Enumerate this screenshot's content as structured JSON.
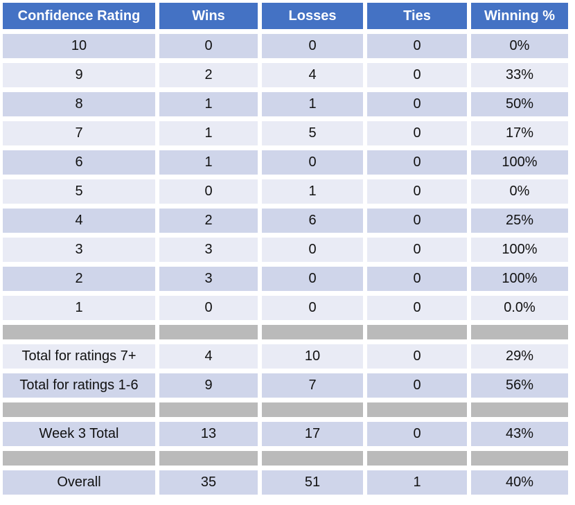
{
  "colors": {
    "header_bg": "#4472C4",
    "header_text": "#FFFFFF",
    "band_dark": "#CFD5EA",
    "band_light": "#E9EBF5",
    "separator_gray": "#BABABA",
    "body_text": "#111111",
    "page_bg": "#FFFFFF"
  },
  "chart_data": {
    "type": "table",
    "columns": [
      "Confidence Rating",
      "Wins",
      "Losses",
      "Ties",
      "Winning %"
    ],
    "rows": [
      {
        "type": "data",
        "shade": "dark",
        "cells": [
          "10",
          "0",
          "0",
          "0",
          "0%"
        ]
      },
      {
        "type": "data",
        "shade": "light",
        "cells": [
          "9",
          "2",
          "4",
          "0",
          "33%"
        ]
      },
      {
        "type": "data",
        "shade": "dark",
        "cells": [
          "8",
          "1",
          "1",
          "0",
          "50%"
        ]
      },
      {
        "type": "data",
        "shade": "light",
        "cells": [
          "7",
          "1",
          "5",
          "0",
          "17%"
        ]
      },
      {
        "type": "data",
        "shade": "dark",
        "cells": [
          "6",
          "1",
          "0",
          "0",
          "100%"
        ]
      },
      {
        "type": "data",
        "shade": "light",
        "cells": [
          "5",
          "0",
          "1",
          "0",
          "0%"
        ]
      },
      {
        "type": "data",
        "shade": "dark",
        "cells": [
          "4",
          "2",
          "6",
          "0",
          "25%"
        ]
      },
      {
        "type": "data",
        "shade": "light",
        "cells": [
          "3",
          "3",
          "0",
          "0",
          "100%"
        ]
      },
      {
        "type": "data",
        "shade": "dark",
        "cells": [
          "2",
          "3",
          "0",
          "0",
          "100%"
        ]
      },
      {
        "type": "data",
        "shade": "light",
        "cells": [
          "1",
          "0",
          "0",
          "0",
          "0.0%"
        ]
      },
      {
        "type": "separator"
      },
      {
        "type": "data",
        "shade": "light",
        "cells": [
          "Total for ratings 7+",
          "4",
          "10",
          "0",
          "29%"
        ]
      },
      {
        "type": "data",
        "shade": "dark",
        "cells": [
          "Total for ratings 1-6",
          "9",
          "7",
          "0",
          "56%"
        ]
      },
      {
        "type": "separator"
      },
      {
        "type": "data",
        "shade": "dark",
        "cells": [
          "Week 3 Total",
          "13",
          "17",
          "0",
          "43%"
        ]
      },
      {
        "type": "separator"
      },
      {
        "type": "data",
        "shade": "dark",
        "cells": [
          "Overall",
          "35",
          "51",
          "1",
          "40%"
        ]
      }
    ]
  }
}
